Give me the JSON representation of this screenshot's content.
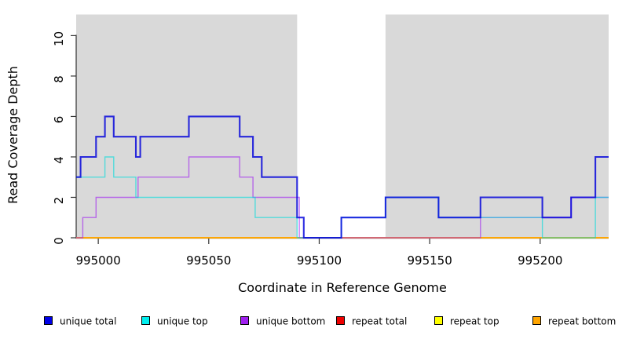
{
  "chart_data": {
    "type": "line",
    "subtype": "step-coverage",
    "title": "",
    "xlabel": "Coordinate in Reference Genome",
    "ylabel": "Read Coverage Depth",
    "xlim": [
      994990,
      995231
    ],
    "ylim": [
      0,
      11
    ],
    "grid": false,
    "legend_position": "bottom",
    "x_ticks": [
      "995000",
      "995050",
      "995100",
      "995150",
      "995200"
    ],
    "x_tick_values": [
      995000,
      995050,
      995100,
      995150,
      995200
    ],
    "y_ticks": [
      "0",
      "2",
      "4",
      "6",
      "8",
      "10"
    ],
    "y_tick_values": [
      0,
      2,
      4,
      6,
      8,
      10
    ],
    "panel_background": "#ffffff",
    "highlight_color": "#d9d9d9",
    "axis_color": "#333333",
    "shaded_regions": [
      {
        "from": 994990,
        "to": 995090
      },
      {
        "from": 995130,
        "to": 995231
      }
    ],
    "series": [
      {
        "name": "unique total",
        "color": "#0000dc",
        "legend_color": "#0000e8",
        "opacity": 0.82,
        "width": 2.1,
        "z": 5,
        "end": 995231,
        "steps": [
          [
            994990,
            3
          ],
          [
            994992,
            4
          ],
          [
            994999,
            5
          ],
          [
            995003,
            6
          ],
          [
            995007,
            5
          ],
          [
            995017,
            4
          ],
          [
            995019,
            5
          ],
          [
            995041,
            6
          ],
          [
            995064,
            5
          ],
          [
            995070,
            4
          ],
          [
            995074,
            3
          ],
          [
            995090,
            1
          ],
          [
            995093,
            0
          ],
          [
            995110,
            1
          ],
          [
            995130,
            2
          ],
          [
            995154,
            1
          ],
          [
            995173,
            2
          ],
          [
            995201,
            1
          ],
          [
            995214,
            2
          ],
          [
            995225,
            4
          ]
        ]
      },
      {
        "name": "unique top",
        "color": "#00dcdc",
        "legend_color": "#00eeee",
        "opacity": 0.62,
        "width": 1.4,
        "z": 4,
        "end": 995231,
        "steps": [
          [
            994990,
            3
          ],
          [
            995003,
            4
          ],
          [
            995007,
            3
          ],
          [
            995017,
            2
          ],
          [
            995071,
            1
          ],
          [
            995090,
            0
          ],
          [
            995110,
            1
          ],
          [
            995130,
            2
          ],
          [
            995154,
            1
          ],
          [
            995201,
            0
          ],
          [
            995225,
            2
          ]
        ]
      },
      {
        "name": "unique bottom",
        "color": "#a020f0",
        "legend_color": "#a020f0",
        "opacity": 0.62,
        "width": 1.4,
        "z": 3,
        "end": 995231,
        "steps": [
          [
            994990,
            0
          ],
          [
            994993,
            1
          ],
          [
            994999,
            2
          ],
          [
            995018,
            3
          ],
          [
            995041,
            4
          ],
          [
            995064,
            3
          ],
          [
            995070,
            2
          ],
          [
            995091,
            0
          ],
          [
            995173,
            1
          ],
          [
            995214,
            2
          ]
        ]
      },
      {
        "name": "repeat total",
        "color": "#ee0000",
        "legend_color": "#ee0000",
        "opacity": 0.95,
        "width": 1.4,
        "z": 0,
        "end": 995231,
        "steps": [
          [
            994990,
            0
          ]
        ]
      },
      {
        "name": "repeat top",
        "color": "#ffff00",
        "legend_color": "#ffff00",
        "opacity": 1,
        "width": 1.4,
        "z": 1,
        "end": 995231,
        "steps": [
          [
            994990,
            0
          ]
        ]
      },
      {
        "name": "repeat bottom",
        "color": "#ffa500",
        "legend_color": "#ffa500",
        "opacity": 1,
        "width": 1.8,
        "z": 2,
        "end": 995231,
        "steps": [
          [
            994990,
            0
          ]
        ]
      }
    ],
    "legend_item_offsets": [
      56,
      180,
      306,
      428,
      553,
      678
    ]
  }
}
